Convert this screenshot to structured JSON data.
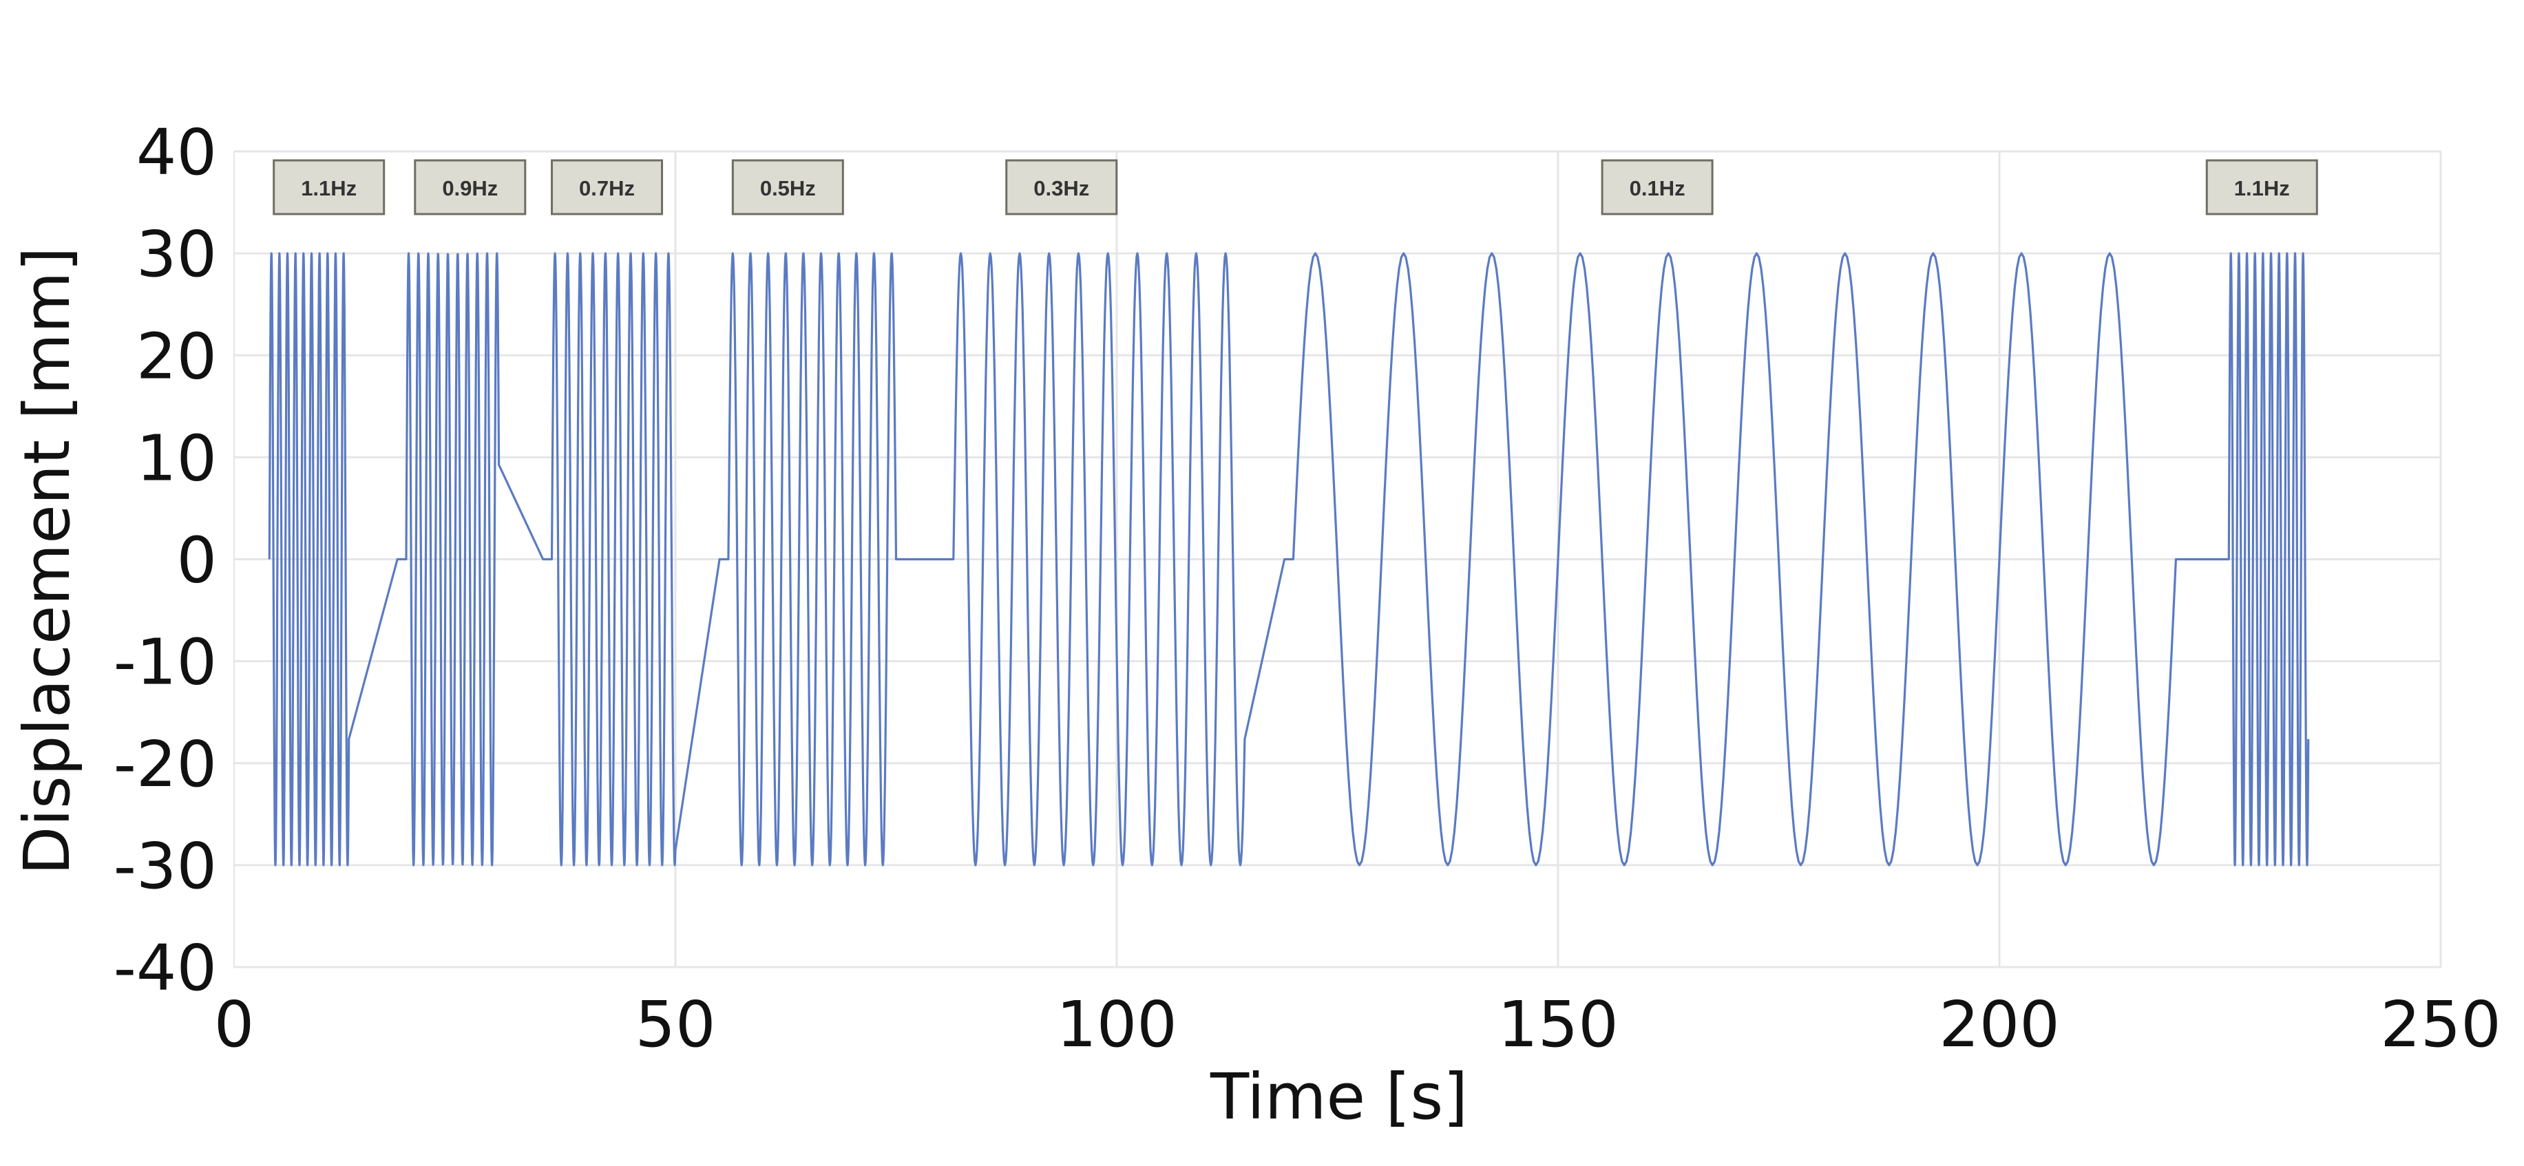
{
  "chart_data": {
    "type": "line",
    "title": "",
    "xlabel": "Time [s]",
    "ylabel": "Displacement [mm]",
    "xlim": [
      0,
      250
    ],
    "ylim": [
      -40,
      40
    ],
    "x_ticks": [
      0,
      50,
      100,
      150,
      200,
      250
    ],
    "y_ticks": [
      40,
      30,
      20,
      10,
      0,
      -10,
      -20,
      -30,
      -40
    ],
    "x_tick_labels": [
      "0",
      "50",
      "100",
      "150",
      "200",
      "250"
    ],
    "y_tick_labels": [
      "40",
      "30",
      "20",
      "10",
      "0",
      "-10",
      "-20",
      "-30",
      "-40"
    ],
    "grid": true,
    "line_color": "#5b7bc2",
    "amplitude_mm": 30,
    "segments": [
      {
        "label": "1.1Hz",
        "frequency_hz": 1.1,
        "start_s": 4,
        "end_s": 13
      },
      {
        "label": "0.9Hz",
        "frequency_hz": 0.9,
        "start_s": 19.5,
        "end_s": 30
      },
      {
        "label": "0.7Hz",
        "frequency_hz": 0.7,
        "start_s": 36,
        "end_s": 50
      },
      {
        "label": "0.5Hz",
        "frequency_hz": 0.5,
        "start_s": 56,
        "end_s": 75
      },
      {
        "label": "0.3Hz",
        "frequency_hz": 0.3,
        "start_s": 81.5,
        "end_s": 114.5
      },
      {
        "label": "0.1Hz",
        "frequency_hz": 0.1,
        "start_s": 120,
        "end_s": 220
      },
      {
        "label": "1.1Hz",
        "frequency_hz": 1.1,
        "start_s": 226,
        "end_s": 235
      }
    ],
    "freq_labels": [
      "1.1Hz",
      "0.9Hz",
      "0.7Hz",
      "0.5Hz",
      "0.3Hz",
      "0.1Hz",
      "1.1Hz"
    ],
    "freq_label_x_s": [
      4.5,
      20.5,
      36,
      56.5,
      87.5,
      155,
      223.5
    ]
  }
}
